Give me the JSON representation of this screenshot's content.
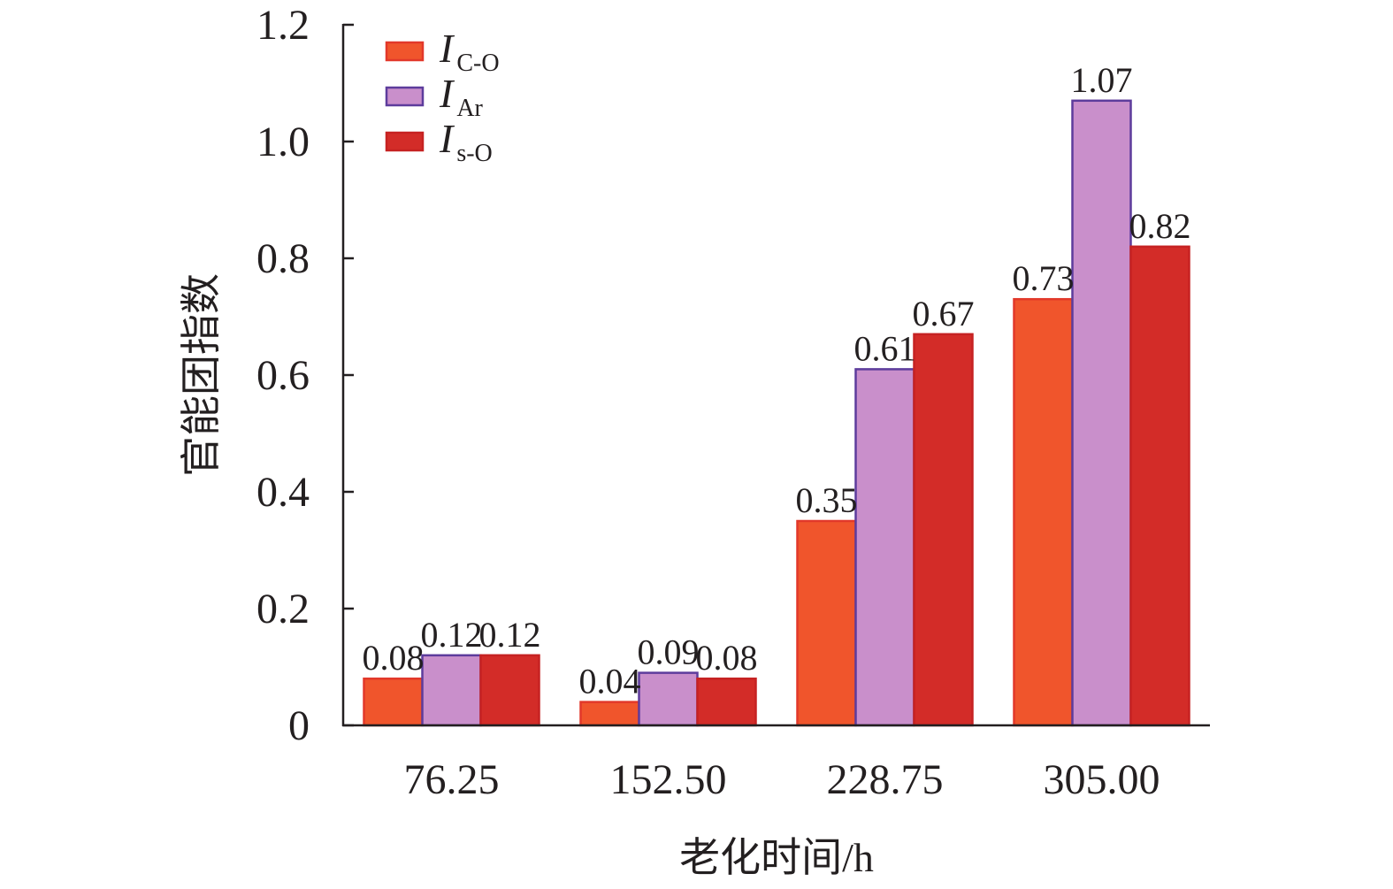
{
  "chart_data": {
    "type": "bar",
    "categories": [
      "76.25",
      "152.50",
      "228.75",
      "305.00"
    ],
    "series": [
      {
        "symbol": "I",
        "subscript": "C-O",
        "values": [
          0.08,
          0.04,
          0.35,
          0.73
        ],
        "color": "#F0552C",
        "edge_color": "#E2382A"
      },
      {
        "symbol": "I",
        "subscript": "Ar",
        "values": [
          0.12,
          0.09,
          0.61,
          1.07
        ],
        "color": "#C98FCB",
        "edge_color": "#5D3C9C"
      },
      {
        "symbol": "I",
        "subscript": "s-O",
        "values": [
          0.12,
          0.08,
          0.67,
          0.82
        ],
        "color": "#D32C28",
        "edge_color": "#C62222"
      }
    ],
    "xlabel": "老化时间/h",
    "ylabel": "官能团指数",
    "ylim": [
      0,
      1.2
    ],
    "y_tick_labels": [
      "0",
      "0.2",
      "0.4",
      "0.6",
      "0.8",
      "1.0",
      "1.2"
    ],
    "grid": false,
    "legend_position": "top-left",
    "data_labels": true,
    "axis_color": "#231F20"
  }
}
